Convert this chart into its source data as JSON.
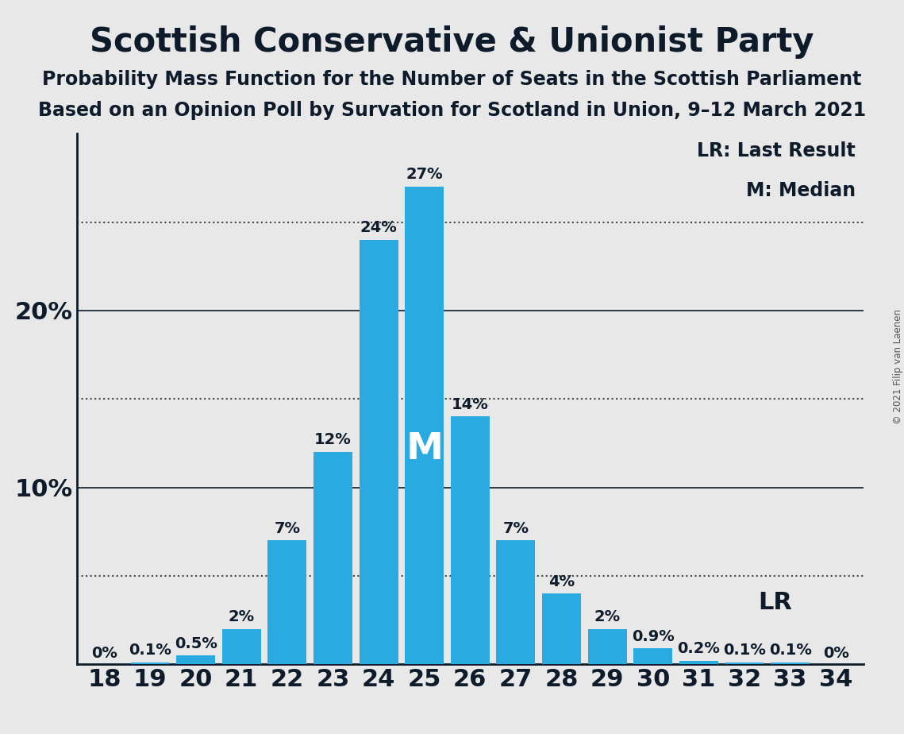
{
  "title": "Scottish Conservative & Unionist Party",
  "subtitle1": "Probability Mass Function for the Number of Seats in the Scottish Parliament",
  "subtitle2": "Based on an Opinion Poll by Survation for Scotland in Union, 9–12 March 2021",
  "copyright": "© 2021 Filip van Laenen",
  "seats": [
    18,
    19,
    20,
    21,
    22,
    23,
    24,
    25,
    26,
    27,
    28,
    29,
    30,
    31,
    32,
    33,
    34
  ],
  "probabilities": [
    0.0,
    0.1,
    0.5,
    2.0,
    7.0,
    12.0,
    24.0,
    27.0,
    14.0,
    7.0,
    4.0,
    2.0,
    0.9,
    0.2,
    0.1,
    0.1,
    0.0
  ],
  "bar_color": "#29ABE2",
  "median_seat": 25,
  "lr_seat": 31,
  "background_color": "#E8E8E8",
  "title_fontsize": 30,
  "subtitle_fontsize": 17,
  "ylabel_fontsize": 22,
  "xlabel_fontsize": 22,
  "bar_label_fontsize": 14,
  "legend_fontsize": 17,
  "yticks": [
    0,
    10,
    20
  ],
  "ytick_labels": [
    "",
    "10%",
    "20%"
  ],
  "ylim": [
    0,
    30
  ],
  "dotted_lines": [
    5,
    15,
    25
  ],
  "solid_lines": [
    10,
    20
  ]
}
